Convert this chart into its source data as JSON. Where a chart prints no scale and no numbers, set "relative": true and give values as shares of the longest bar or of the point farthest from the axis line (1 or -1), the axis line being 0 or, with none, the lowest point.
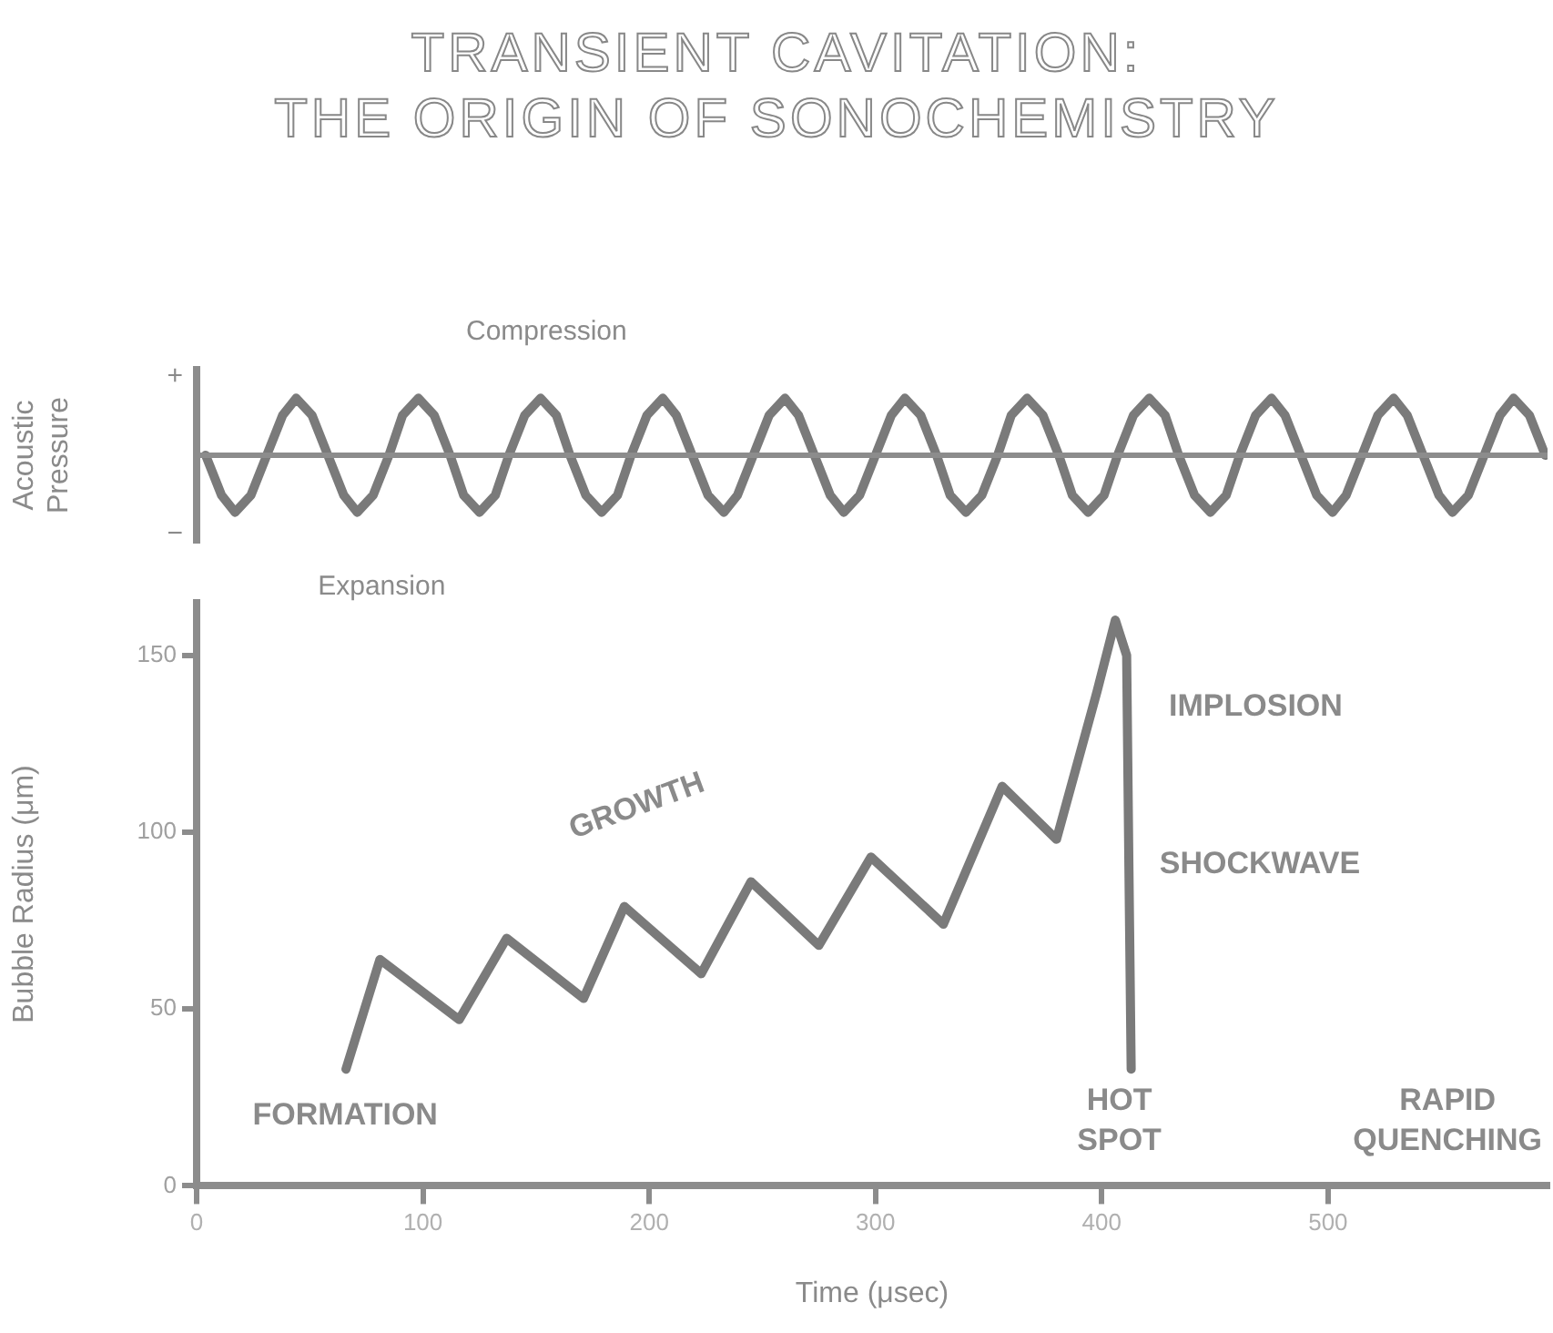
{
  "chart_data": [
    {
      "type": "line",
      "title": "TRANSIENT CAVITATION:\nTHE ORIGIN OF SONOCHEMISTRY",
      "ylabel": "Acoustic\nPressure",
      "grid": false,
      "legend": false,
      "marker": "none",
      "line_style": "solid",
      "xlim": [
        0,
        597
      ],
      "relative": true,
      "ref_lines": [
        {
          "axis": "y",
          "value": 0,
          "color": "#8c8c8c"
        }
      ],
      "annotations": [
        "Compression",
        "Expansion",
        "+",
        "−"
      ],
      "series": [
        {
          "color": "#7a7a7a",
          "x": [
            4,
            11,
            17,
            24,
            31,
            38,
            44,
            51,
            58,
            65,
            71,
            78,
            85,
            91,
            98,
            105,
            112,
            118,
            125,
            132,
            138,
            145,
            152,
            159,
            165,
            172,
            179,
            186,
            192,
            199,
            206,
            212,
            219,
            226,
            233,
            239,
            246,
            253,
            260,
            266,
            273,
            280,
            286,
            293,
            300,
            307,
            313,
            320,
            327,
            333,
            340,
            347,
            354,
            360,
            367,
            374,
            381,
            387,
            394,
            401,
            407,
            414,
            421,
            428,
            434,
            441,
            448,
            455,
            461,
            468,
            475,
            481,
            488,
            495,
            502,
            508,
            515,
            522,
            529,
            535,
            542,
            549,
            555,
            562,
            569,
            576,
            582,
            589,
            596
          ],
          "values": [
            0,
            -0.7,
            -1,
            -0.7,
            0,
            0.7,
            1,
            0.7,
            0,
            -0.7,
            -1,
            -0.7,
            0,
            0.7,
            1,
            0.7,
            0,
            -0.7,
            -1,
            -0.7,
            0,
            0.7,
            1,
            0.7,
            0,
            -0.7,
            -1,
            -0.7,
            0,
            0.7,
            1,
            0.7,
            0,
            -0.7,
            -1,
            -0.7,
            0,
            0.7,
            1,
            0.7,
            0,
            -0.7,
            -1,
            -0.7,
            0,
            0.7,
            1,
            0.7,
            0,
            -0.7,
            -1,
            -0.7,
            0,
            0.7,
            1,
            0.7,
            0,
            -0.7,
            -1,
            -0.7,
            0,
            0.7,
            1,
            0.7,
            0,
            -0.7,
            -1,
            -0.7,
            0,
            0.7,
            1,
            0.7,
            0,
            -0.7,
            -1,
            -0.7,
            0,
            0.7,
            1,
            0.7,
            0,
            -0.7,
            -1,
            -0.7,
            0,
            0.7,
            1,
            0.7,
            0
          ]
        }
      ]
    },
    {
      "type": "line",
      "xlabel": "Time (μsec)",
      "ylabel": "Bubble Radius (μm)",
      "grid": false,
      "legend": false,
      "marker": "none",
      "line_style": "solid",
      "xlim": [
        0,
        597
      ],
      "xticks": [
        0,
        100,
        200,
        300,
        400,
        500
      ],
      "ylim": [
        0,
        165
      ],
      "yticks": [
        0,
        50,
        100,
        150
      ],
      "annotations": [
        "FORMATION",
        "GROWTH",
        "IMPLOSION",
        "SHOCKWAVE",
        "HOT\nSPOT",
        "RAPID\nQUENCHING"
      ],
      "series": [
        {
          "color": "#7a7a7a",
          "x": [
            66,
            81,
            116,
            137,
            171,
            189,
            223,
            245,
            275,
            298,
            330,
            356,
            380,
            398,
            406,
            411,
            412,
            413
          ],
          "values": [
            33,
            64,
            47,
            70,
            53,
            79,
            60,
            86,
            68,
            93,
            74,
            113,
            98,
            140,
            160,
            150,
            90,
            33
          ]
        }
      ]
    }
  ]
}
